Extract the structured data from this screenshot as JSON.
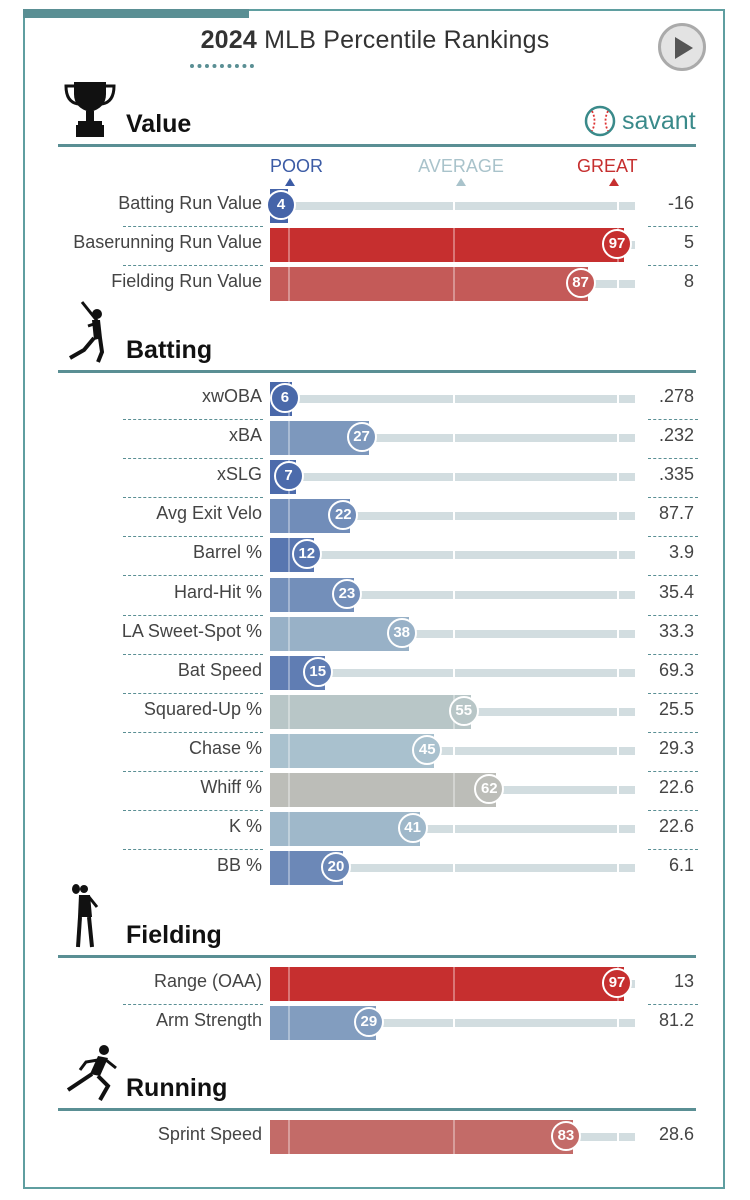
{
  "header": {
    "title_year": "2024",
    "title_rest": "MLB Percentile Rankings",
    "brand": "savant"
  },
  "scale": {
    "poor": "POOR",
    "average": "AVERAGE",
    "great": "GREAT"
  },
  "colors": {
    "accent": "#5a8f94",
    "poor": "#3b5ba5",
    "great": "#c62f2f",
    "average": "#b0c8d0"
  },
  "sections": [
    {
      "name": "Value",
      "icon": "trophy-icon",
      "rows": [
        {
          "label": "Batting Run Value",
          "percentile": 4,
          "value": "-16"
        },
        {
          "label": "Baserunning Run Value",
          "percentile": 97,
          "value": "5"
        },
        {
          "label": "Fielding Run Value",
          "percentile": 87,
          "value": "8"
        }
      ]
    },
    {
      "name": "Batting",
      "icon": "batter-icon",
      "rows": [
        {
          "label": "xwOBA",
          "percentile": 6,
          "value": ".278"
        },
        {
          "label": "xBA",
          "percentile": 27,
          "value": ".232"
        },
        {
          "label": "xSLG",
          "percentile": 7,
          "value": ".335"
        },
        {
          "label": "Avg Exit Velo",
          "percentile": 22,
          "value": "87.7"
        },
        {
          "label": "Barrel %",
          "percentile": 12,
          "value": "3.9"
        },
        {
          "label": "Hard-Hit %",
          "percentile": 23,
          "value": "35.4"
        },
        {
          "label": "LA Sweet-Spot %",
          "percentile": 38,
          "value": "33.3"
        },
        {
          "label": "Bat Speed",
          "percentile": 15,
          "value": "69.3"
        },
        {
          "label": "Squared-Up %",
          "percentile": 55,
          "value": "25.5"
        },
        {
          "label": "Chase %",
          "percentile": 45,
          "value": "29.3"
        },
        {
          "label": "Whiff %",
          "percentile": 62,
          "value": "22.6"
        },
        {
          "label": "K %",
          "percentile": 41,
          "value": "22.6"
        },
        {
          "label": "BB %",
          "percentile": 20,
          "value": "6.1"
        }
      ]
    },
    {
      "name": "Fielding",
      "icon": "fielder-icon",
      "rows": [
        {
          "label": "Range (OAA)",
          "percentile": 97,
          "value": "13"
        },
        {
          "label": "Arm Strength",
          "percentile": 29,
          "value": "81.2"
        }
      ]
    },
    {
      "name": "Running",
      "icon": "runner-icon",
      "rows": [
        {
          "label": "Sprint Speed",
          "percentile": 83,
          "value": "28.6"
        }
      ]
    }
  ],
  "chart_data": {
    "type": "bar",
    "title": "2024 MLB Percentile Rankings",
    "xlim": [
      0,
      100
    ],
    "categories": [
      "Batting Run Value",
      "Baserunning Run Value",
      "Fielding Run Value",
      "xwOBA",
      "xBA",
      "xSLG",
      "Avg Exit Velo",
      "Barrel %",
      "Hard-Hit %",
      "LA Sweet-Spot %",
      "Bat Speed",
      "Squared-Up %",
      "Chase %",
      "Whiff %",
      "K %",
      "BB %",
      "Range (OAA)",
      "Arm Strength",
      "Sprint Speed"
    ],
    "values": [
      4,
      97,
      87,
      6,
      27,
      7,
      22,
      12,
      23,
      38,
      15,
      55,
      45,
      62,
      41,
      20,
      97,
      29,
      83
    ],
    "stat_values": [
      "-16",
      "5",
      "8",
      ".278",
      ".232",
      ".335",
      "87.7",
      "3.9",
      "35.4",
      "33.3",
      "69.3",
      "25.5",
      "29.3",
      "22.6",
      "22.6",
      "6.1",
      "13",
      "81.2",
      "28.6"
    ]
  }
}
